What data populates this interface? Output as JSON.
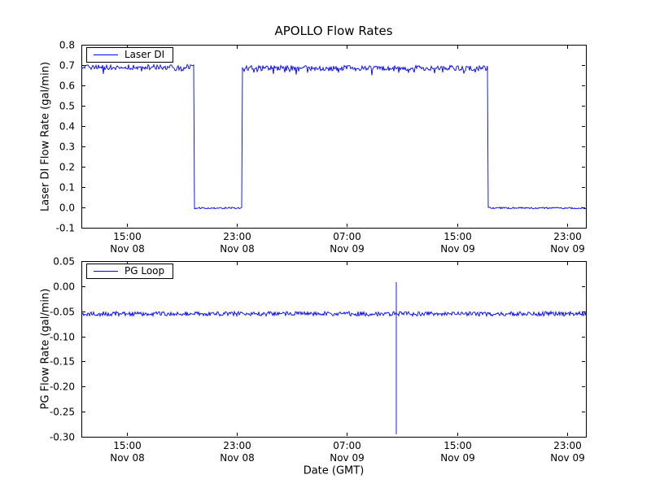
{
  "colors": {
    "background": "#ffffff",
    "axes": "#000000",
    "series": "#0000ff"
  },
  "chart_data": [
    {
      "type": "line",
      "title": "APOLLO Flow Rates",
      "ylabel": "Laser DI Flow Rate (gal/min)",
      "legend": {
        "label": "Laser DI",
        "position": "upper left"
      },
      "line_color": "#0000ff",
      "ylim": [
        -0.1,
        0.8
      ],
      "yticks": [
        -0.1,
        0.0,
        0.1,
        0.2,
        0.3,
        0.4,
        0.5,
        0.6,
        0.7,
        0.8
      ],
      "ytick_labels": [
        "-0.1",
        "0.0",
        "0.1",
        "0.2",
        "0.3",
        "0.4",
        "0.5",
        "0.6",
        "0.7",
        "0.8"
      ],
      "x_unit": "hours since Nov 08 00:00 GMT",
      "x_hours_range": [
        11.7,
        48.35
      ],
      "xticks": [
        {
          "hour": 15,
          "label_time": "15:00",
          "label_date": "Nov 08"
        },
        {
          "hour": 23,
          "label_time": "23:00",
          "label_date": "Nov 08"
        },
        {
          "hour": 31,
          "label_time": "07:00",
          "label_date": "Nov 09"
        },
        {
          "hour": 39,
          "label_time": "15:00",
          "label_date": "Nov 09"
        },
        {
          "hour": 47,
          "label_time": "23:00",
          "label_date": "Nov 09"
        }
      ],
      "segments": [
        {
          "from_hour": 11.7,
          "to_hour": 19.9,
          "value": 0.69,
          "noise": 0.013
        },
        {
          "from_hour": 19.9,
          "to_hour": 23.4,
          "value": -0.003,
          "noise": 0.004
        },
        {
          "from_hour": 23.4,
          "to_hour": 41.2,
          "value": 0.685,
          "noise": 0.013
        },
        {
          "from_hour": 41.2,
          "to_hour": 48.35,
          "value": -0.003,
          "noise": 0.004
        }
      ]
    },
    {
      "type": "line",
      "ylabel": "PG Flow Rate (gal/min)",
      "xlabel": "Date (GMT)",
      "legend": {
        "label": "PG Loop",
        "position": "upper left"
      },
      "line_color": "#0000ff",
      "ylim": [
        -0.3,
        0.05
      ],
      "yticks": [
        -0.3,
        -0.25,
        -0.2,
        -0.15,
        -0.1,
        -0.05,
        0.0,
        0.05
      ],
      "ytick_labels": [
        "-0.30",
        "-0.25",
        "-0.20",
        "-0.15",
        "-0.10",
        "-0.05",
        "0.00",
        "0.05"
      ],
      "x_unit": "hours since Nov 08 00:00 GMT",
      "x_hours_range": [
        11.7,
        48.35
      ],
      "xticks": [
        {
          "hour": 15,
          "label_time": "15:00",
          "label_date": "Nov 08"
        },
        {
          "hour": 23,
          "label_time": "23:00",
          "label_date": "Nov 08"
        },
        {
          "hour": 31,
          "label_time": "07:00",
          "label_date": "Nov 09"
        },
        {
          "hour": 39,
          "label_time": "15:00",
          "label_date": "Nov 09"
        },
        {
          "hour": 47,
          "label_time": "23:00",
          "label_date": "Nov 09"
        }
      ],
      "segments": [
        {
          "from_hour": 11.7,
          "to_hour": 48.35,
          "value": -0.055,
          "noise": 0.0045
        }
      ],
      "spikes": [
        {
          "hour": 34.6,
          "peak_high": 0.008,
          "peak_low": -0.295
        }
      ]
    }
  ]
}
